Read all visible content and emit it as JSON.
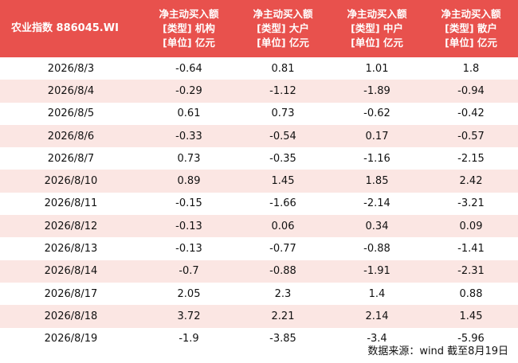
{
  "table": {
    "header": {
      "title": "农业指数 886045.WI",
      "columns": [
        {
          "line1": "净主动买入额",
          "line2": "[类型] 机构",
          "line3": "[单位] 亿元"
        },
        {
          "line1": "净主动买入额",
          "line2": "[类型] 大户",
          "line3": "[单位] 亿元"
        },
        {
          "line1": "净主动买入额",
          "line2": "[类型] 中户",
          "line3": "[单位] 亿元"
        },
        {
          "line1": "净主动买入额",
          "line2": "[类型] 散户",
          "line3": "[单位] 亿元"
        }
      ]
    },
    "rows": [
      {
        "date": "2026/8/3",
        "institution": "-0.64",
        "large": "0.81",
        "medium": "1.01",
        "retail": "1.8"
      },
      {
        "date": "2026/8/4",
        "institution": "-0.29",
        "large": "-1.12",
        "medium": "-1.89",
        "retail": "-0.94"
      },
      {
        "date": "2026/8/5",
        "institution": "0.61",
        "large": "0.73",
        "medium": "-0.62",
        "retail": "-0.42"
      },
      {
        "date": "2026/8/6",
        "institution": "-0.33",
        "large": "-0.54",
        "medium": "0.17",
        "retail": "-0.57"
      },
      {
        "date": "2026/8/7",
        "institution": "0.73",
        "large": "-0.35",
        "medium": "-1.16",
        "retail": "-2.15"
      },
      {
        "date": "2026/8/10",
        "institution": "0.89",
        "large": "1.45",
        "medium": "1.85",
        "retail": "2.42"
      },
      {
        "date": "2026/8/11",
        "institution": "-0.15",
        "large": "-1.66",
        "medium": "-2.14",
        "retail": "-3.21"
      },
      {
        "date": "2026/8/12",
        "institution": "-0.13",
        "large": "0.06",
        "medium": "0.34",
        "retail": "0.09"
      },
      {
        "date": "2026/8/13",
        "institution": "-0.13",
        "large": "-0.77",
        "medium": "-0.88",
        "retail": "-1.41"
      },
      {
        "date": "2026/8/14",
        "institution": "-0.7",
        "large": "-0.88",
        "medium": "-1.91",
        "retail": "-2.31"
      },
      {
        "date": "2026/8/17",
        "institution": "2.05",
        "large": "2.3",
        "medium": "1.4",
        "retail": "0.88"
      },
      {
        "date": "2026/8/18",
        "institution": "3.72",
        "large": "2.21",
        "medium": "2.14",
        "retail": "1.45"
      },
      {
        "date": "2026/8/19",
        "institution": "-1.9",
        "large": "-3.85",
        "medium": "-3.4",
        "retail": "-5.96"
      }
    ]
  },
  "footer": {
    "source": "数据来源：wind 截至8月19日"
  },
  "colors": {
    "header_bg": "#e8514d",
    "header_text": "#ffffff",
    "stripe": "#fbe6e3",
    "row_bg": "#ffffff",
    "body_text": "#111111"
  }
}
